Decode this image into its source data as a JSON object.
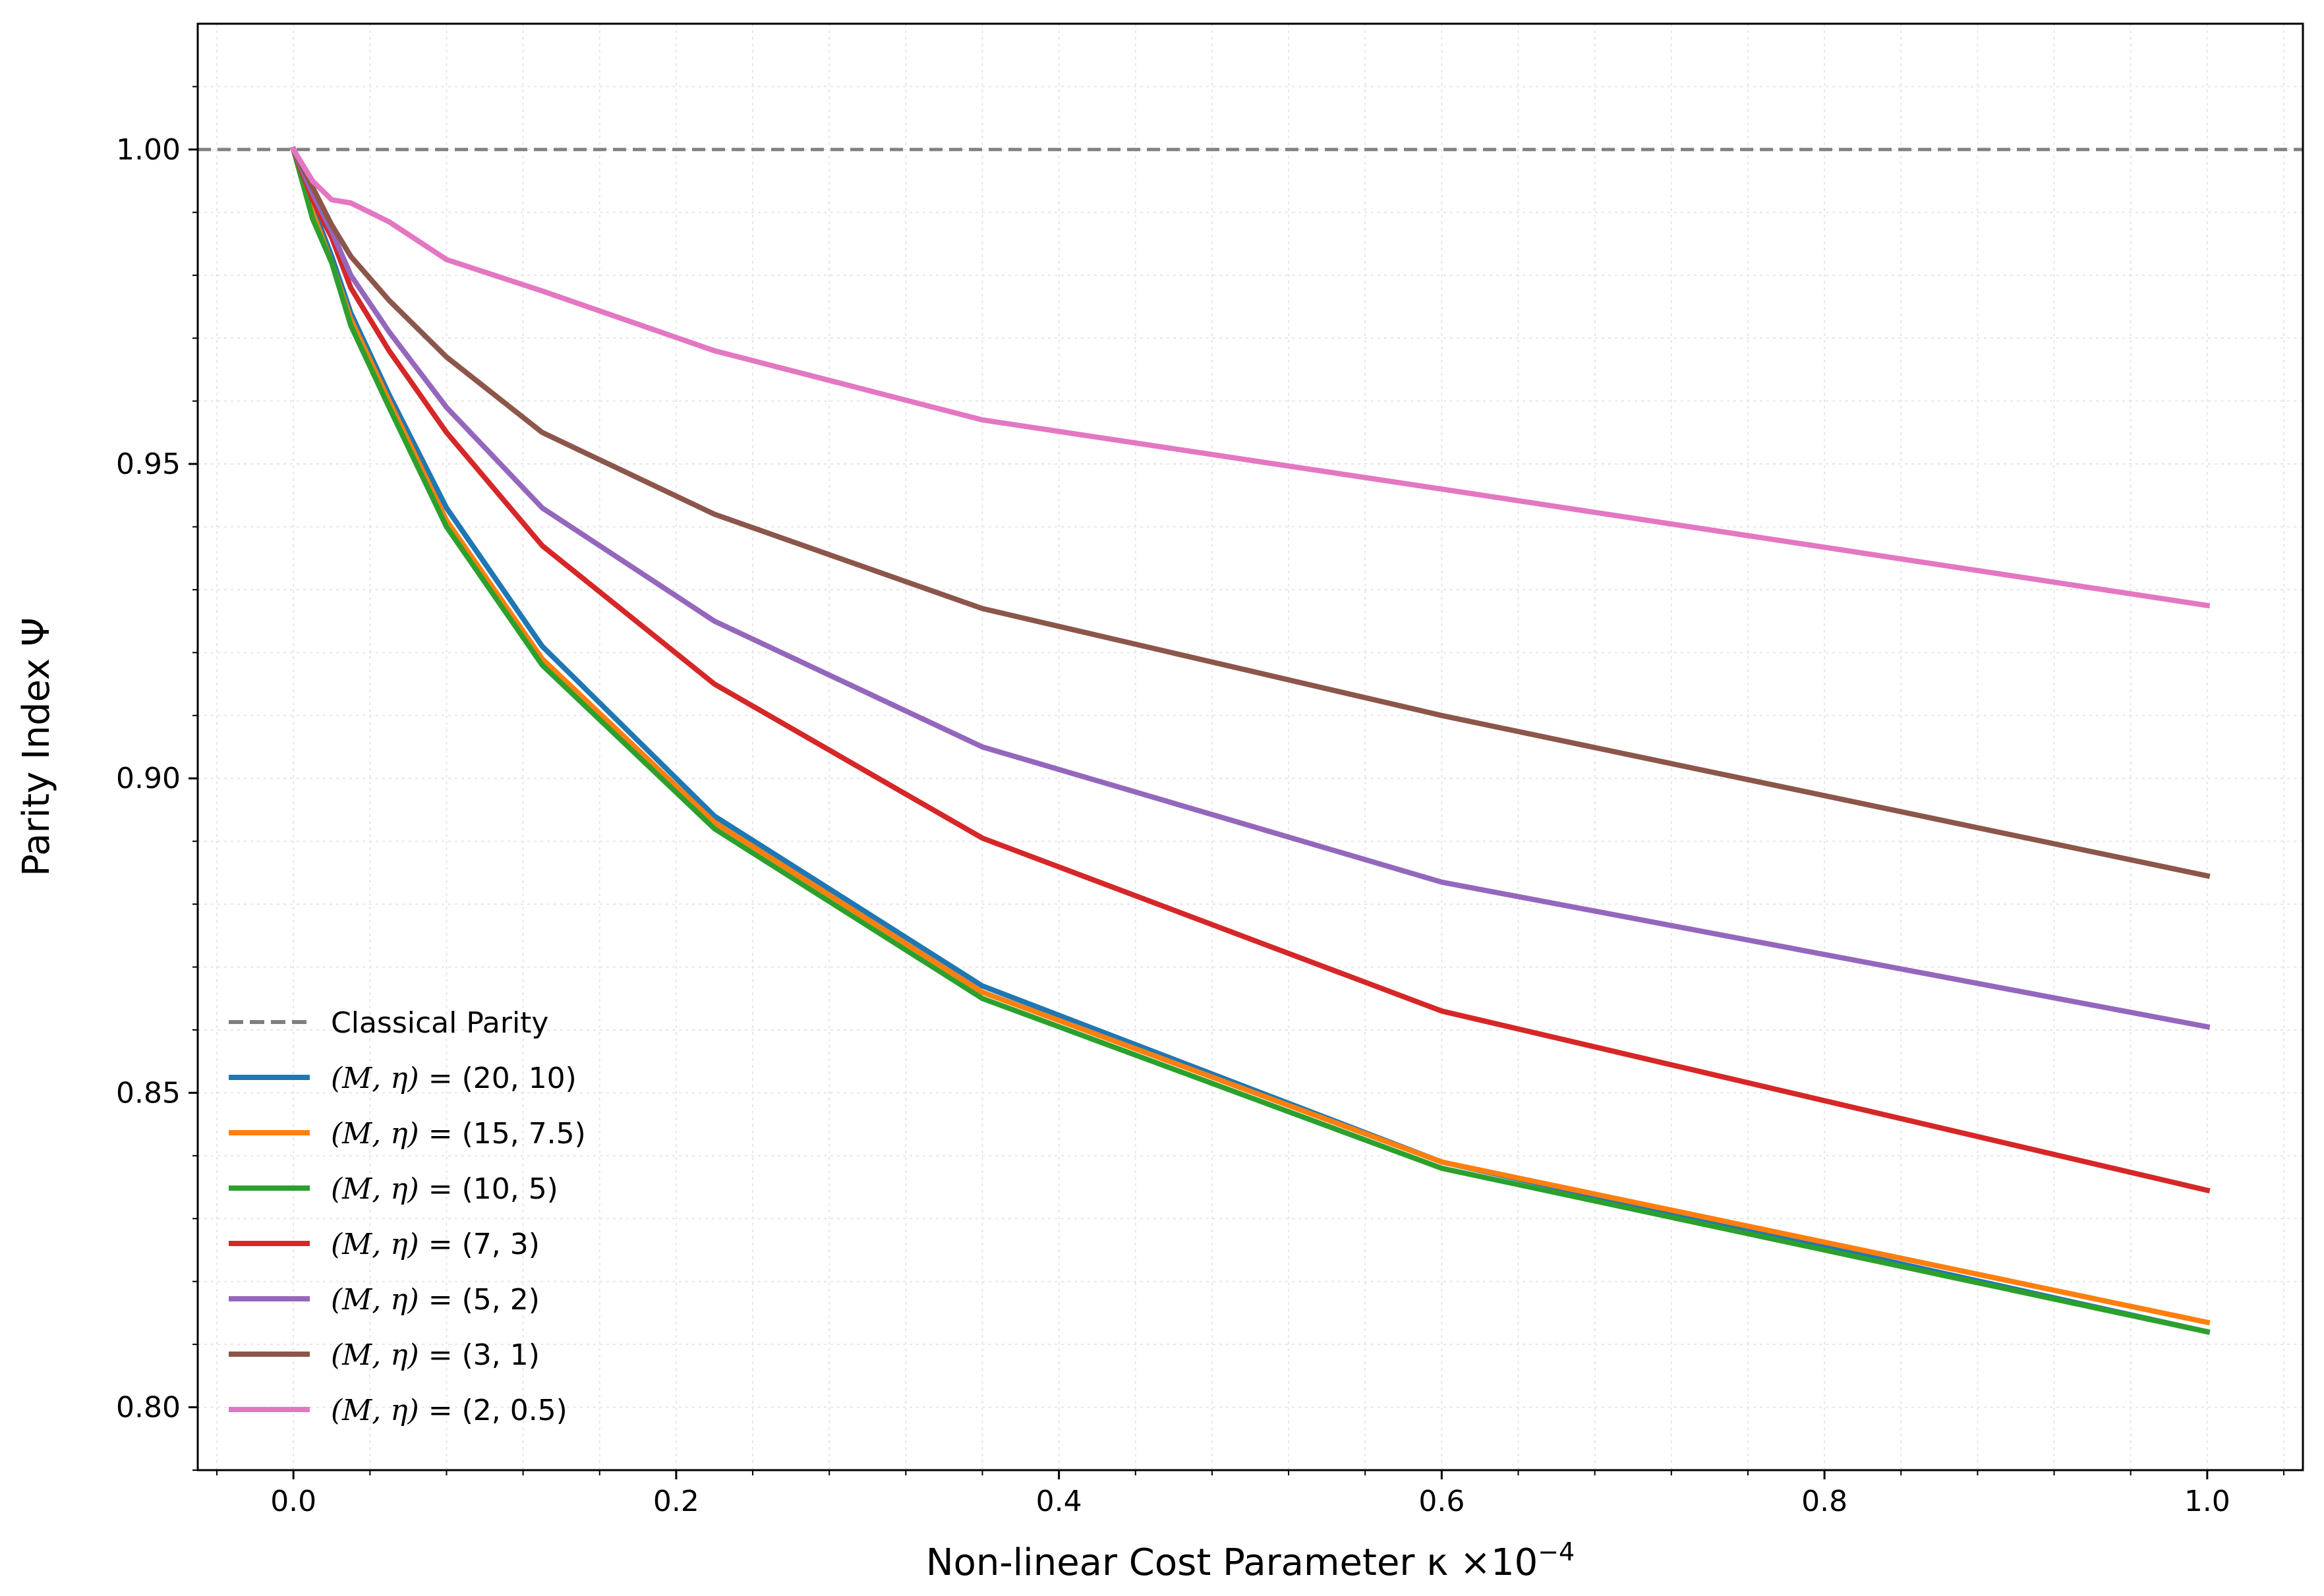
{
  "chart_data": {
    "type": "line",
    "title": "",
    "xlabel": "Non-linear Cost Parameter κ ×10",
    "xlabel_exponent": "−4",
    "ylabel": "Parity Index Ψ",
    "xlim": [
      -0.05,
      1.05
    ],
    "ylim": [
      0.79,
      1.02
    ],
    "grid": true,
    "legend_position": "lower-left",
    "x_ticks": [
      0.0,
      0.2,
      0.4,
      0.6,
      0.8,
      1.0
    ],
    "x_tick_labels": [
      "0.0",
      "0.2",
      "0.4",
      "0.6",
      "0.8",
      "1.0"
    ],
    "y_ticks": [
      0.8,
      0.85,
      0.9,
      0.95,
      1.0
    ],
    "y_tick_labels": [
      "0.80",
      "0.85",
      "0.90",
      "0.95",
      "1.00"
    ],
    "reference_line": {
      "name": "Classical Parity",
      "y": 1.0,
      "color": "#808080",
      "style": "dashed"
    },
    "series": [
      {
        "name": "(M, η) = (20, 10)",
        "label_prefix": "(M, η) = ",
        "label_value": "(20, 10)",
        "color": "#1f77b4",
        "x": [
          0.0,
          0.01,
          0.02,
          0.03,
          0.05,
          0.08,
          0.13,
          0.22,
          0.36,
          0.6,
          1.0
        ],
        "y": [
          1.0,
          0.991,
          0.983,
          0.974,
          0.961,
          0.943,
          0.921,
          0.894,
          0.867,
          0.839,
          0.812
        ]
      },
      {
        "name": "(M, η) = (15, 7.5)",
        "label_prefix": "(M, η) = ",
        "label_value": "(15, 7.5)",
        "color": "#ff7f0e",
        "x": [
          0.0,
          0.01,
          0.02,
          0.03,
          0.05,
          0.08,
          0.13,
          0.22,
          0.36,
          0.6,
          1.0
        ],
        "y": [
          1.0,
          0.99,
          0.982,
          0.973,
          0.96,
          0.941,
          0.919,
          0.893,
          0.866,
          0.839,
          0.8135
        ]
      },
      {
        "name": "(M, η) = (10, 5)",
        "label_prefix": "(M, η) = ",
        "label_value": "(10, 5)",
        "color": "#2ca02c",
        "x": [
          0.0,
          0.01,
          0.02,
          0.03,
          0.05,
          0.08,
          0.13,
          0.22,
          0.36,
          0.6,
          1.0
        ],
        "y": [
          1.0,
          0.989,
          0.982,
          0.972,
          0.959,
          0.94,
          0.918,
          0.892,
          0.865,
          0.838,
          0.812
        ]
      },
      {
        "name": "(M, η) = (7, 3)",
        "label_prefix": "(M, η) = ",
        "label_value": "(7, 3)",
        "color": "#d62728",
        "x": [
          0.0,
          0.01,
          0.02,
          0.03,
          0.05,
          0.08,
          0.13,
          0.22,
          0.36,
          0.6,
          1.0
        ],
        "y": [
          1.0,
          0.992,
          0.986,
          0.978,
          0.968,
          0.955,
          0.937,
          0.915,
          0.8905,
          0.863,
          0.8345
        ]
      },
      {
        "name": "(M, η) = (5, 2)",
        "label_prefix": "(M, η) = ",
        "label_value": "(5, 2)",
        "color": "#9467bd",
        "x": [
          0.0,
          0.01,
          0.02,
          0.03,
          0.05,
          0.08,
          0.13,
          0.22,
          0.36,
          0.6,
          1.0
        ],
        "y": [
          1.0,
          0.993,
          0.987,
          0.98,
          0.971,
          0.959,
          0.943,
          0.925,
          0.905,
          0.8835,
          0.8605
        ]
      },
      {
        "name": "(M, η) = (3, 1)",
        "label_prefix": "(M, η) = ",
        "label_value": "(3, 1)",
        "color": "#8c564b",
        "x": [
          0.0,
          0.01,
          0.02,
          0.03,
          0.05,
          0.08,
          0.13,
          0.22,
          0.36,
          0.6,
          1.0
        ],
        "y": [
          1.0,
          0.994,
          0.988,
          0.983,
          0.976,
          0.967,
          0.955,
          0.942,
          0.927,
          0.91,
          0.8845
        ]
      },
      {
        "name": "(M, η) = (2, 0.5)",
        "label_prefix": "(M, η) = ",
        "label_value": "(2, 0.5)",
        "color": "#e377c2",
        "x": [
          0.0,
          0.01,
          0.02,
          0.03,
          0.05,
          0.08,
          0.13,
          0.22,
          0.36,
          0.6,
          1.0
        ],
        "y": [
          1.0,
          0.995,
          0.992,
          0.9915,
          0.9885,
          0.9825,
          0.9775,
          0.968,
          0.957,
          0.946,
          0.9275
        ]
      }
    ]
  }
}
